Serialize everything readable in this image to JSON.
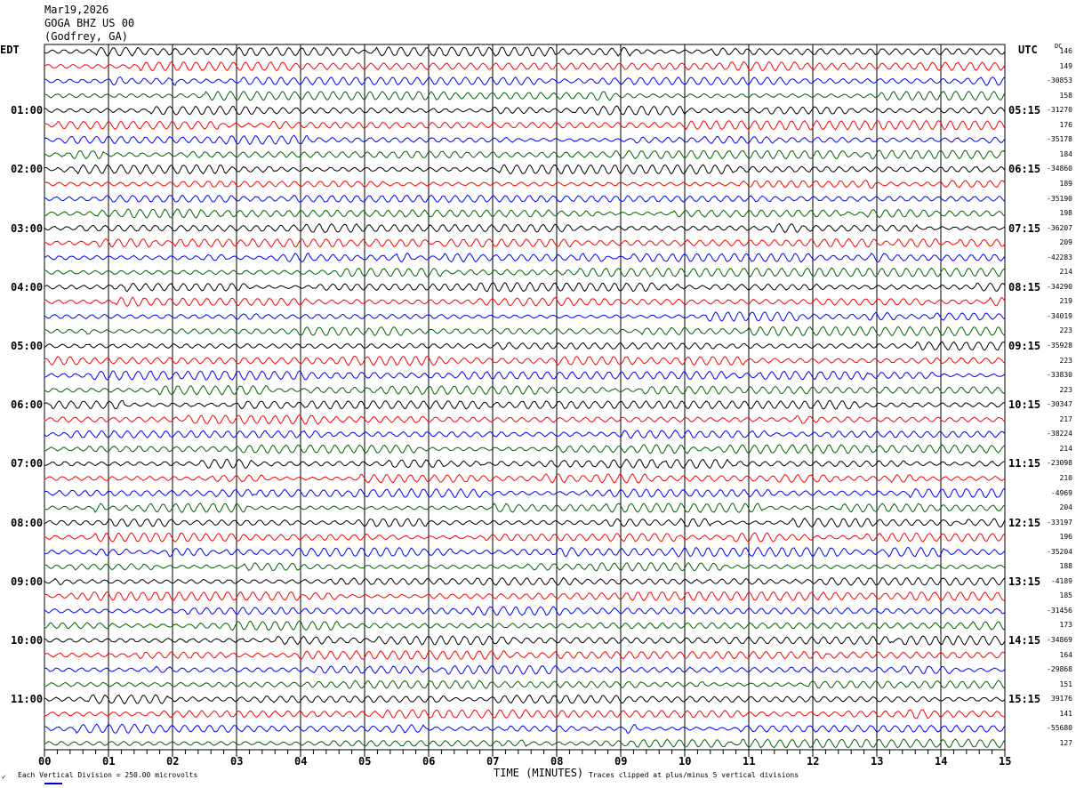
{
  "header": {
    "date": "Mar19,2026",
    "station": "GOGA BHZ US 00",
    "location": "(Godfrey, GA)"
  },
  "left_tz": "EDT",
  "right_tz": "UTC",
  "dc_label": "DC",
  "footer": {
    "scale": "Each Vertical Division =  250.00 microvolts",
    "xlabel": "TIME (MINUTES)",
    "clip_note": "Traces clipped at plus/minus 5 vertical divisions"
  },
  "chart_data": {
    "type": "line",
    "title": "GOGA BHZ US 00 (Godfrey, GA) Mar19,2026",
    "xlabel": "TIME (MINUTES)",
    "x_ticks": [
      "00",
      "01",
      "02",
      "03",
      "04",
      "05",
      "06",
      "07",
      "08",
      "09",
      "10",
      "11",
      "12",
      "13",
      "14",
      "15"
    ],
    "xlim": [
      0,
      15
    ],
    "rows_per_hour": 4,
    "trace_colors": [
      "#000000",
      "#ff0000",
      "#0000ff",
      "#006400"
    ],
    "left_hour_labels": [
      "",
      "01:00",
      "02:00",
      "03:00",
      "04:00",
      "05:00",
      "06:00",
      "07:00",
      "08:00",
      "09:00",
      "10:00",
      "11:00"
    ],
    "right_hour_labels": [
      "",
      "05:15",
      "06:15",
      "07:15",
      "08:15",
      "09:15",
      "10:15",
      "11:15",
      "12:15",
      "13:15",
      "14:15",
      "15:15"
    ],
    "dc_offsets": [
      "146",
      "149",
      "-30853",
      "158",
      "-31270",
      "176",
      "-35178",
      "184",
      "-34860",
      "189",
      "-35190",
      "198",
      "-36207",
      "209",
      "-42283",
      "214",
      "-34290",
      "219",
      "-34019",
      "223",
      "-35928",
      "223",
      "-33830",
      "223",
      "-30347",
      "217",
      "-38224",
      "214",
      "-23098",
      "210",
      "-4969",
      "204",
      "-33197",
      "196",
      "-35204",
      "188",
      "-4189",
      "185",
      "-31456",
      "173",
      "-34869",
      "164",
      "-29868",
      "151",
      "39176",
      "141",
      "-55680",
      "127"
    ]
  }
}
